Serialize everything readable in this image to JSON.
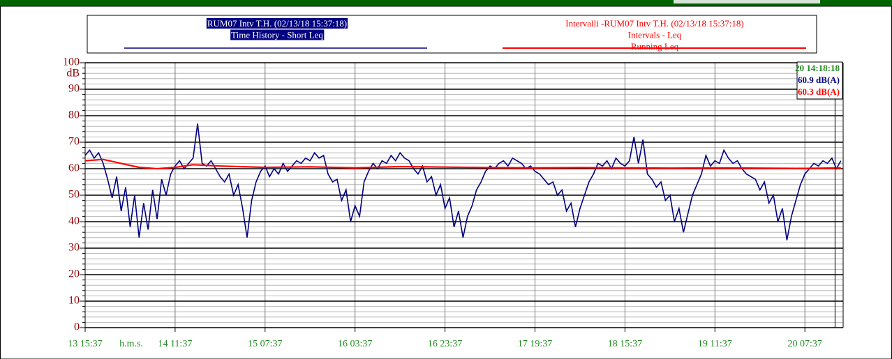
{
  "chart_data": {
    "type": "line",
    "ylabel": "dB",
    "xlabel": "h.m.s.",
    "xlim": [
      0,
      168.5
    ],
    "xticks": [
      {
        "value": 0,
        "label": "13 15:37"
      },
      {
        "value": 20,
        "label": "14 11:37"
      },
      {
        "value": 40,
        "label": "15 07:37"
      },
      {
        "value": 60,
        "label": "16 03:37"
      },
      {
        "value": 80,
        "label": "16 23:37"
      },
      {
        "value": 100,
        "label": "17 19:37"
      },
      {
        "value": 120,
        "label": "18 15:37"
      },
      {
        "value": 140,
        "label": "19 11:37"
      },
      {
        "value": 160,
        "label": "20 07:37"
      }
    ],
    "ylim": [
      0,
      100
    ],
    "yticks": [
      0,
      10,
      20,
      30,
      40,
      50,
      60,
      70,
      80,
      90,
      100
    ],
    "minor_ystep": 2,
    "grid": true,
    "series": [
      {
        "name": "RUM07 Intv T.H. (02/13/18 15:37:18)",
        "legend_lines": [
          "Time History - Short Leq"
        ],
        "color": "#000080",
        "x": [
          0,
          1,
          2,
          3,
          4,
          5,
          6,
          7,
          8,
          9,
          10,
          11,
          12,
          13,
          14,
          15,
          16,
          17,
          18,
          19,
          20,
          21,
          22,
          23,
          24,
          25,
          26,
          27,
          28,
          29,
          30,
          31,
          32,
          33,
          34,
          35,
          36,
          37,
          38,
          39,
          40,
          41,
          42,
          43,
          44,
          45,
          46,
          47,
          48,
          49,
          50,
          51,
          52,
          53,
          54,
          55,
          56,
          57,
          58,
          59,
          60,
          61,
          62,
          63,
          64,
          65,
          66,
          67,
          68,
          69,
          70,
          71,
          72,
          73,
          74,
          75,
          76,
          77,
          78,
          79,
          80,
          81,
          82,
          83,
          84,
          85,
          86,
          87,
          88,
          89,
          90,
          91,
          92,
          93,
          94,
          95,
          96,
          97,
          98,
          99,
          100,
          101,
          102,
          103,
          104,
          105,
          106,
          107,
          108,
          109,
          110,
          111,
          112,
          113,
          114,
          115,
          116,
          117,
          118,
          119,
          120,
          121,
          122,
          123,
          124,
          125,
          126,
          127,
          128,
          129,
          130,
          131,
          132,
          133,
          134,
          135,
          136,
          137,
          138,
          139,
          140,
          141,
          142,
          143,
          144,
          145,
          146,
          147,
          148,
          149,
          150,
          151,
          152,
          153,
          154,
          155,
          156,
          157,
          158,
          159,
          160,
          161,
          162,
          163,
          164,
          165,
          166,
          167,
          168
        ],
        "values": [
          65,
          67,
          64,
          66,
          62,
          56,
          49,
          57,
          44,
          53,
          38,
          50,
          34,
          47,
          37,
          52,
          41,
          56,
          50,
          58,
          61,
          63,
          60,
          62,
          64,
          77,
          62,
          61,
          63,
          60,
          57,
          55,
          58,
          50,
          54,
          45,
          34,
          48,
          55,
          59,
          61,
          57,
          60,
          58,
          62,
          59,
          61,
          63,
          62,
          64,
          63,
          66,
          64,
          65,
          58,
          55,
          56,
          48,
          52,
          40,
          46,
          42,
          55,
          59,
          62,
          60,
          63,
          62,
          65,
          63,
          66,
          64,
          63,
          60,
          58,
          61,
          55,
          57,
          50,
          54,
          45,
          49,
          38,
          44,
          34,
          42,
          46,
          52,
          55,
          59,
          61,
          60,
          62,
          63,
          61,
          64,
          63,
          62,
          60,
          61,
          59,
          58,
          56,
          54,
          55,
          50,
          52,
          44,
          47,
          38,
          45,
          50,
          55,
          58,
          62,
          61,
          63,
          60,
          64,
          62,
          61,
          63,
          72,
          62,
          71,
          58,
          56,
          53,
          55,
          48,
          50,
          40,
          45,
          36,
          43,
          50,
          54,
          58,
          65,
          61,
          63,
          62,
          67,
          64,
          62,
          63,
          60,
          58,
          57,
          56,
          52,
          55,
          47,
          50,
          40,
          45,
          33,
          42,
          48,
          54,
          58,
          60,
          62,
          61,
          63,
          62,
          64,
          60,
          63
        ]
      },
      {
        "name": "Intervalli -RUM07 Intv T.H. (02/13/18 15:37:18)",
        "legend_lines": [
          "Intervals - Leq",
          "Running Leq"
        ],
        "color": "#ff0000",
        "x": [
          0,
          4,
          8,
          12,
          16,
          20,
          24,
          30,
          40,
          50,
          60,
          70,
          80,
          90,
          100,
          110,
          120,
          130,
          140,
          150,
          160,
          168
        ],
        "values": [
          63,
          63.5,
          62,
          60.5,
          60,
          60.5,
          61.5,
          61,
          60.5,
          60.7,
          60.3,
          60.8,
          60.6,
          60.4,
          60.3,
          60.4,
          60.3,
          60.2,
          60.3,
          60.2,
          60.1,
          60.3
        ]
      }
    ],
    "cursor": {
      "x": 166.7,
      "label": "20 14:18:18",
      "readings": [
        "60.9 dB(A)",
        "60.3 dB(A)"
      ]
    }
  }
}
